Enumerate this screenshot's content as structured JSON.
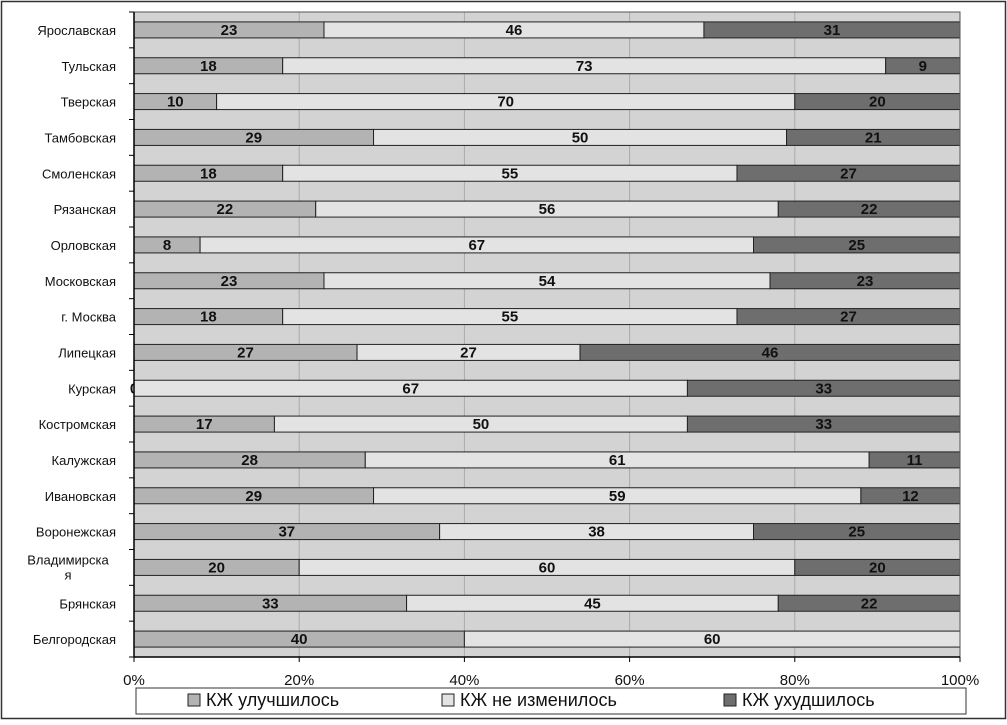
{
  "colors": {
    "improved": "#b3b3b3",
    "unchanged": "#e3e3e3",
    "worsened": "#6e6e6e",
    "plot_bg": "#d3d3d3"
  },
  "chart_data": {
    "type": "bar",
    "orientation": "horizontal",
    "stacked": "percent",
    "title": "",
    "xlabel": "",
    "ylabel": "",
    "xlim": [
      0,
      100
    ],
    "x_ticks": [
      "0%",
      "20%",
      "40%",
      "60%",
      "80%",
      "100%"
    ],
    "grid": true,
    "legend_position": "bottom",
    "categories": [
      "Ярославская",
      "Тульская",
      "Тверская",
      "Тамбовская",
      "Смоленская",
      "Рязанская",
      "Орловская",
      "Московская",
      "г. Москва",
      "Липецкая",
      "Курская",
      "Костромская",
      "Калужская",
      "Ивановская",
      "Воронежская",
      "Владимирска я",
      "Брянская",
      "Белгородская"
    ],
    "series": [
      {
        "name": "КЖ улучшилось",
        "values": [
          23,
          18,
          10,
          29,
          18,
          22,
          8,
          23,
          18,
          27,
          0,
          17,
          28,
          29,
          37,
          20,
          33,
          40
        ]
      },
      {
        "name": "КЖ не изменилось",
        "values": [
          46,
          73,
          70,
          50,
          55,
          56,
          67,
          54,
          55,
          27,
          67,
          50,
          61,
          59,
          38,
          60,
          45,
          60
        ]
      },
      {
        "name": "КЖ ухудшилось",
        "values": [
          31,
          9,
          20,
          21,
          27,
          22,
          25,
          23,
          27,
          46,
          33,
          33,
          11,
          12,
          25,
          20,
          22,
          0
        ]
      }
    ]
  }
}
